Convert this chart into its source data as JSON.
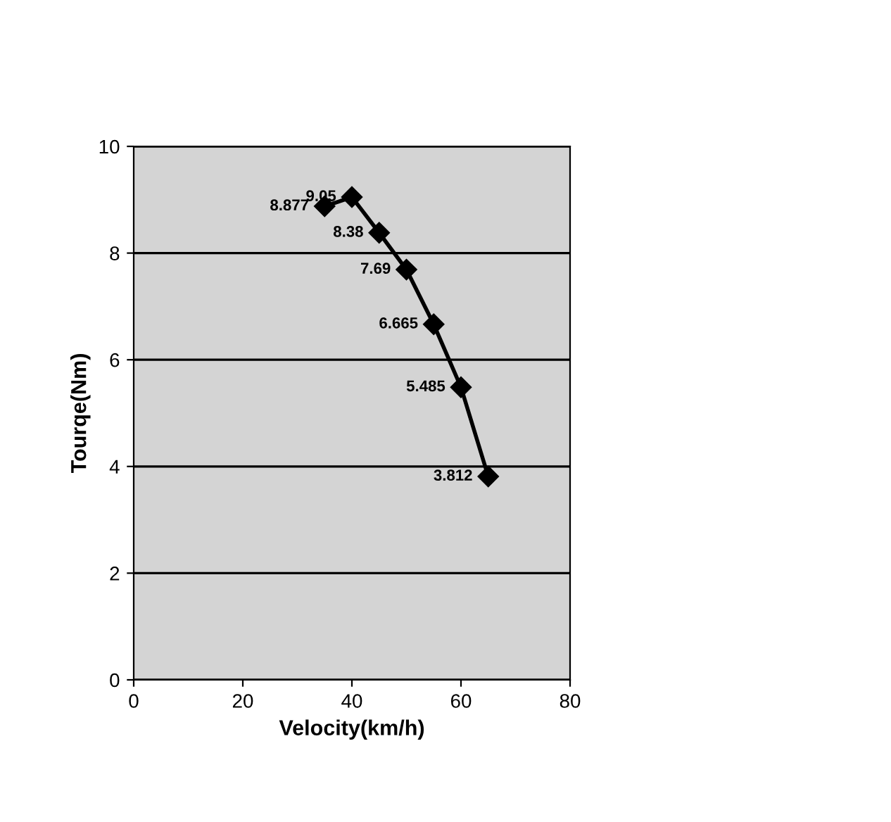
{
  "chart_data": {
    "type": "line",
    "xlabel": "Velocity(km/h)",
    "ylabel": "Tourqe(Nm)",
    "x": [
      35,
      40,
      45,
      50,
      55,
      60,
      65
    ],
    "series": [
      {
        "color": "#000000",
        "values": [
          8.877,
          9.05,
          8.38,
          7.69,
          6.665,
          5.485,
          3.812
        ],
        "value_labels": [
          "8.877",
          "9.05",
          "8.38",
          "7.69",
          "6.665",
          "5.485",
          "3.812"
        ]
      }
    ],
    "xlim": [
      0,
      80
    ],
    "xticks": [
      0,
      20,
      40,
      60,
      80
    ],
    "ylim": [
      0,
      10
    ],
    "yticks": [
      0,
      2,
      4,
      6,
      8,
      10
    ],
    "grid": "y",
    "marker": "diamond",
    "line_style": "solid"
  }
}
